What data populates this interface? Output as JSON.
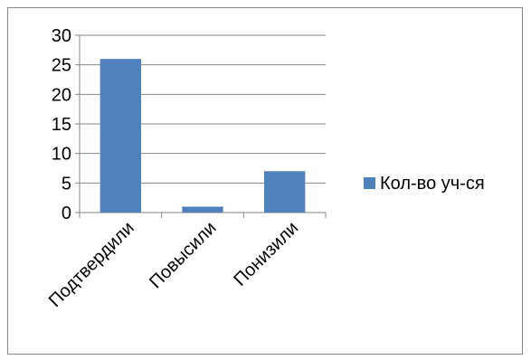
{
  "chart_data": {
    "type": "bar",
    "categories": [
      "Подтвердили",
      "Повысили",
      "Понизили"
    ],
    "series": [
      {
        "name": "Кол-во уч-ся",
        "values": [
          26,
          1,
          7
        ],
        "color": "#4F81BD"
      }
    ],
    "y_ticks": [
      "0",
      "5",
      "10",
      "15",
      "20",
      "25",
      "30"
    ],
    "ylim": [
      0,
      30
    ],
    "grid": true,
    "legend": "right"
  }
}
